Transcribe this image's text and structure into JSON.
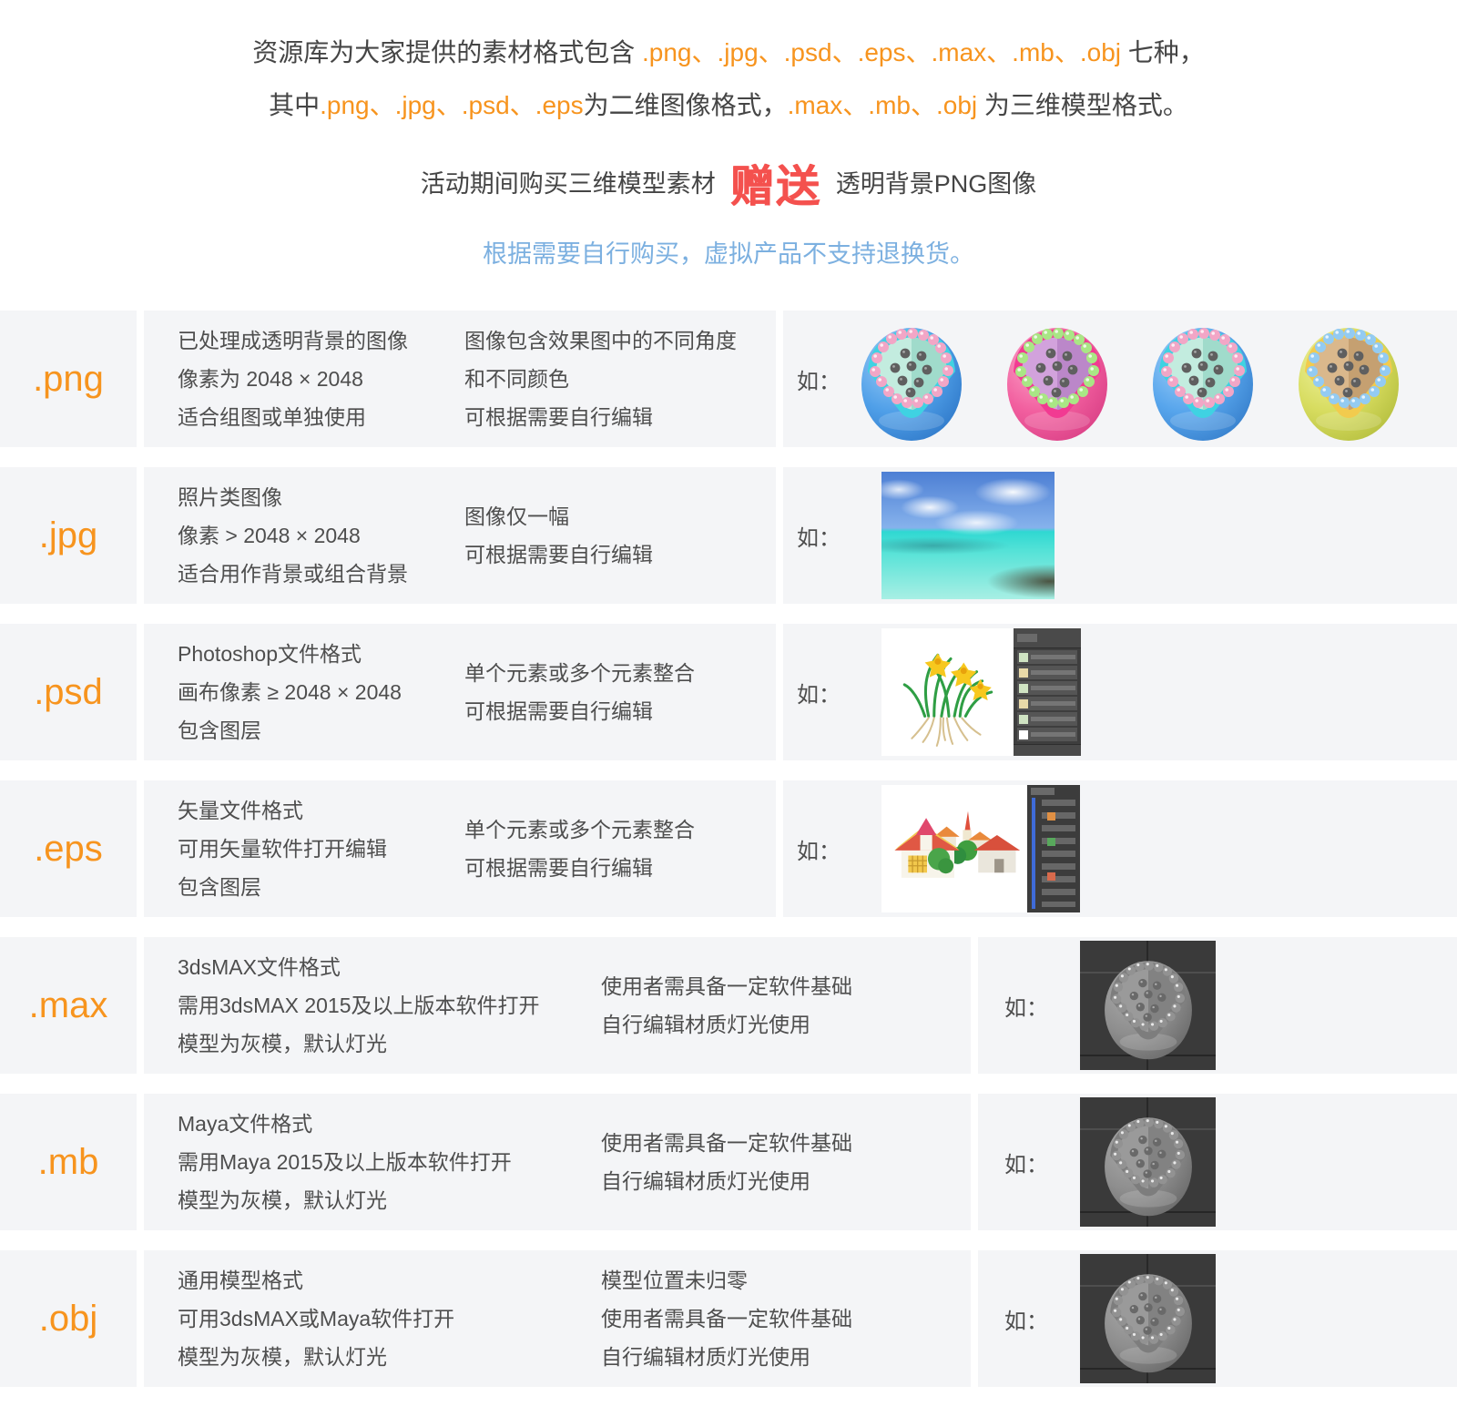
{
  "palette": {
    "accent_orange": "#f7941e",
    "accent_blue": "#7cb0e0",
    "accent_red": "#f4514e",
    "row_background": "#f4f5f7",
    "body_text": "#4e4e4e"
  },
  "header": {
    "line1": [
      {
        "t": "资源库为大家提供的素材格式包含 ",
        "c": "dark"
      },
      {
        "t": ".png、.jpg、.psd、.eps、.max、.mb、.obj",
        "c": "orange"
      },
      {
        "t": " 七种，",
        "c": "dark"
      }
    ],
    "line2": [
      {
        "t": "其中",
        "c": "dark"
      },
      {
        "t": ".png、.jpg、.psd、.eps",
        "c": "orange"
      },
      {
        "t": "为二维图像格式，",
        "c": "dark"
      },
      {
        "t": ".max、.mb、.obj",
        "c": "orange"
      },
      {
        "t": " 为三维模型格式。",
        "c": "dark"
      }
    ],
    "promo_before": "活动期间购买三维模型素材",
    "promo_badge": "赠送",
    "promo_after": "透明背景PNG图像",
    "notice": "根据需要自行购买，虚拟产品不支持退换货。"
  },
  "example_label": "如：",
  "rows": [
    {
      "format": ".png",
      "col1": [
        "已处理成透明背景的图像",
        "像素为 2048 × 2048",
        "适合组图或单独使用"
      ],
      "col2": [
        "图像包含效果图中的不同角度",
        "和不同颜色",
        "可根据需要自行编辑"
      ]
    },
    {
      "format": ".jpg",
      "col1": [
        "照片类图像",
        "像素 > 2048 × 2048",
        "适合用作背景或组合背景"
      ],
      "col2": [
        "图像仅一幅",
        "可根据需要自行编辑"
      ]
    },
    {
      "format": ".psd",
      "col1": [
        "Photoshop文件格式",
        "画布像素 ≥ 2048 × 2048",
        "包含图层"
      ],
      "col2": [
        "单个元素或多个元素整合",
        "可根据需要自行编辑"
      ]
    },
    {
      "format": ".eps",
      "col1": [
        "矢量文件格式",
        "可用矢量软件打开编辑",
        "包含图层"
      ],
      "col2": [
        "单个元素或多个元素整合",
        "可根据需要自行编辑"
      ]
    },
    {
      "format": ".max",
      "col1": [
        "3dsMAX文件格式",
        "需用3dsMAX 2015及以上版本软件打开",
        "模型为灰模，默认灯光"
      ],
      "col2": [
        "使用者需具备一定软件基础",
        "自行编辑材质灯光使用"
      ]
    },
    {
      "format": ".mb",
      "col1": [
        "Maya文件格式",
        "需用Maya 2015及以上版本软件打开",
        "模型为灰模，默认灯光"
      ],
      "col2": [
        "使用者需具备一定软件基础",
        "自行编辑材质灯光使用"
      ]
    },
    {
      "format": ".obj",
      "col1": [
        "通用模型格式",
        "可用3dsMAX或Maya软件打开",
        "模型为灰模，默认灯光"
      ],
      "col2": [
        "模型位置未归零",
        "使用者需具备一定软件基础",
        "自行编辑材质灯光使用"
      ]
    }
  ],
  "balls": [
    {
      "name": "blue-ball-pink-dots",
      "body": "#4f9fe8",
      "light": "#9ccdf6",
      "dark": "#2f78c8",
      "rim": "#3fd2e2",
      "inner": "#c3ecdf",
      "shade": "#a0dbcb",
      "ring": "#f2a6c6",
      "seed": "#5f5f5f"
    },
    {
      "name": "pink-ball-green-dots",
      "body": "#f25f9f",
      "light": "#fba8cb",
      "dark": "#d93f85",
      "rim": "#f23a92",
      "inner": "#d2a2dc",
      "shade": "#bb87c9",
      "ring": "#a9e685",
      "seed": "#5f5f5f"
    },
    {
      "name": "blue-ball-pink-dots-2",
      "body": "#57a5ec",
      "light": "#a2d1f8",
      "dark": "#357dca",
      "rim": "#3fd2e2",
      "inner": "#c3ecdf",
      "shade": "#a0dbcb",
      "ring": "#f2a6c6",
      "seed": "#5f5f5f"
    },
    {
      "name": "yellow-ball-blue-dots",
      "body": "#d7dc5f",
      "light": "#eff3a2",
      "dark": "#b4be3e",
      "rim": "#f2cb4e",
      "inner": "#dab88c",
      "shade": "#c5a071",
      "ring": "#93cbf2",
      "seed": "#5f5f5f"
    }
  ],
  "gray_ball": {
    "name": "clay-render-ball",
    "body": "#8e8e8e",
    "light": "#ababab",
    "dark": "#686868",
    "rim": "#7d7d7d",
    "inner": "#9a9a9a",
    "shade": "#828282",
    "ring": "#929292",
    "seed": "#696969"
  }
}
